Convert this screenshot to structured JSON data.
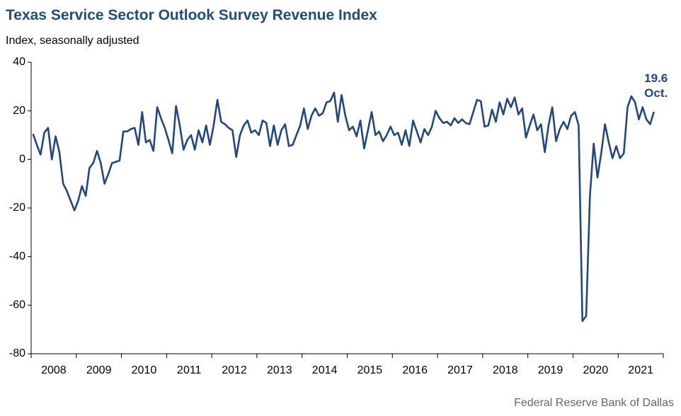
{
  "chart_data": {
    "type": "line",
    "title": "Texas Service Sector Outlook Survey Revenue Index",
    "subtitle": "Index, seasonally adjusted",
    "source": "Federal Reserve Bank of Dallas",
    "annotation": "Oct.",
    "categories": [
      "2008",
      null,
      null,
      null,
      null,
      null,
      null,
      null,
      null,
      null,
      null,
      null,
      "2009",
      null,
      null,
      null,
      null,
      null,
      null,
      null,
      null,
      null,
      null,
      null,
      "2010",
      null,
      null,
      null,
      null,
      null,
      null,
      null,
      null,
      null,
      null,
      null,
      "2011",
      null,
      null,
      null,
      null,
      null,
      null,
      null,
      null,
      null,
      null,
      null,
      "2012",
      null,
      null,
      null,
      null,
      null,
      null,
      null,
      null,
      null,
      null,
      null,
      "2013",
      null,
      null,
      null,
      null,
      null,
      null,
      null,
      null,
      null,
      null,
      null,
      "2014",
      null,
      null,
      null,
      null,
      null,
      null,
      null,
      null,
      null,
      null,
      null,
      "2015",
      null,
      null,
      null,
      null,
      null,
      null,
      null,
      null,
      null,
      null,
      null,
      "2016",
      null,
      null,
      null,
      null,
      null,
      null,
      null,
      null,
      null,
      null,
      null,
      "2017",
      null,
      null,
      null,
      null,
      null,
      null,
      null,
      null,
      null,
      null,
      null,
      "2018",
      null,
      null,
      null,
      null,
      null,
      null,
      null,
      null,
      null,
      null,
      null,
      "2019",
      null,
      null,
      null,
      null,
      null,
      null,
      null,
      null,
      null,
      null,
      null,
      "2020",
      null,
      null,
      null,
      null,
      null,
      null,
      null,
      null,
      null,
      null,
      null,
      "2021",
      null,
      null,
      null,
      null,
      null,
      null,
      null,
      null,
      null,
      null,
      null
    ],
    "series": [
      {
        "name": "Revenue index",
        "color": "#23477b",
        "values": [
          10.5,
          6,
          2,
          11,
          13,
          0,
          9.5,
          3,
          -10,
          -13,
          -17,
          -21,
          -17,
          -11,
          -15,
          -3.5,
          -1.5,
          3.5,
          -1.5,
          -10,
          -6,
          -1.5,
          -1,
          -0.5,
          11.5,
          11.5,
          12.5,
          13,
          6,
          19.5,
          7,
          8,
          3.5,
          21.5,
          17,
          13,
          8,
          2.5,
          22,
          14,
          4,
          8,
          10,
          4,
          12,
          7,
          14,
          6,
          14,
          24.5,
          15.5,
          14.5,
          13,
          12,
          1,
          10,
          14,
          16,
          11,
          12,
          10,
          16,
          15,
          5.5,
          14,
          6,
          12,
          14.5,
          5.5,
          6,
          10,
          14,
          21,
          12.5,
          18,
          21,
          18,
          19,
          23.5,
          24,
          27.5,
          15.5,
          26.5,
          18,
          12,
          13.5,
          9.5,
          16,
          4.5,
          12,
          19.5,
          10,
          11.5,
          7.5,
          10,
          13.5,
          10,
          11,
          6,
          12,
          5.5,
          16,
          11.5,
          7,
          12.5,
          10,
          13.5,
          20,
          17,
          15,
          15.5,
          14,
          17,
          15,
          16.5,
          15,
          14.5,
          19.5,
          24.5,
          24,
          13.5,
          14,
          20.5,
          15.5,
          23.5,
          18.5,
          25,
          21.5,
          25.5,
          18.5,
          21,
          9,
          14,
          18.5,
          12,
          14.5,
          3,
          14,
          21.5,
          7.5,
          12.5,
          15.5,
          12.5,
          18,
          19.5,
          14,
          -66.5,
          -64.5,
          -15,
          6.5,
          -7.5,
          2.5,
          14.5,
          7,
          0.5,
          5.5,
          0.5,
          2.5,
          21.5,
          26,
          23.5,
          16.5,
          21.5,
          16.5,
          14.5,
          19.6,
          null,
          null
        ]
      }
    ],
    "ylim": [
      -80,
      40
    ],
    "yticks": [
      -80,
      -60,
      -40,
      -20,
      0,
      20,
      40
    ],
    "grid": false
  }
}
